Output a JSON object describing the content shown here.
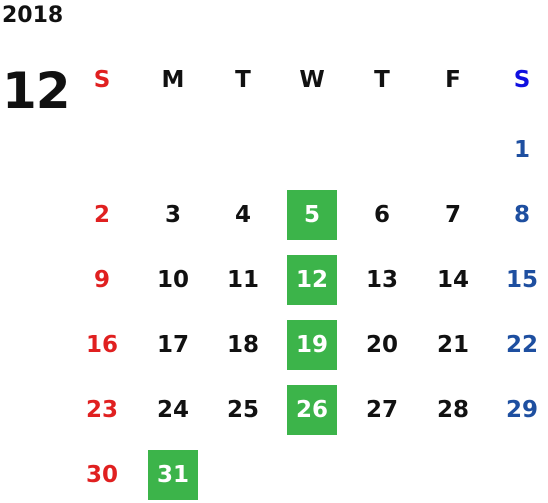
{
  "calendar": {
    "year": "2018",
    "month": "12",
    "weekdays": [
      "S",
      "M",
      "T",
      "W",
      "T",
      "F",
      "S"
    ],
    "weeks": [
      [
        "",
        "",
        "",
        "",
        "",
        "",
        "1"
      ],
      [
        "2",
        "3",
        "4",
        "5",
        "6",
        "7",
        "8"
      ],
      [
        "9",
        "10",
        "11",
        "12",
        "13",
        "14",
        "15"
      ],
      [
        "16",
        "17",
        "18",
        "19",
        "20",
        "21",
        "22"
      ],
      [
        "23",
        "24",
        "25",
        "26",
        "27",
        "28",
        "29"
      ],
      [
        "30",
        "31",
        "",
        "",
        "",
        "",
        ""
      ]
    ],
    "highlighted_days": [
      "5",
      "12",
      "19",
      "26",
      "31"
    ]
  },
  "colors": {
    "sunday": "#e02020",
    "saturday_header": "#1010e0",
    "saturday": "#1e4fa0",
    "highlight_bg": "#3cb44a",
    "highlight_text": "#ffffff",
    "text": "#111111"
  }
}
